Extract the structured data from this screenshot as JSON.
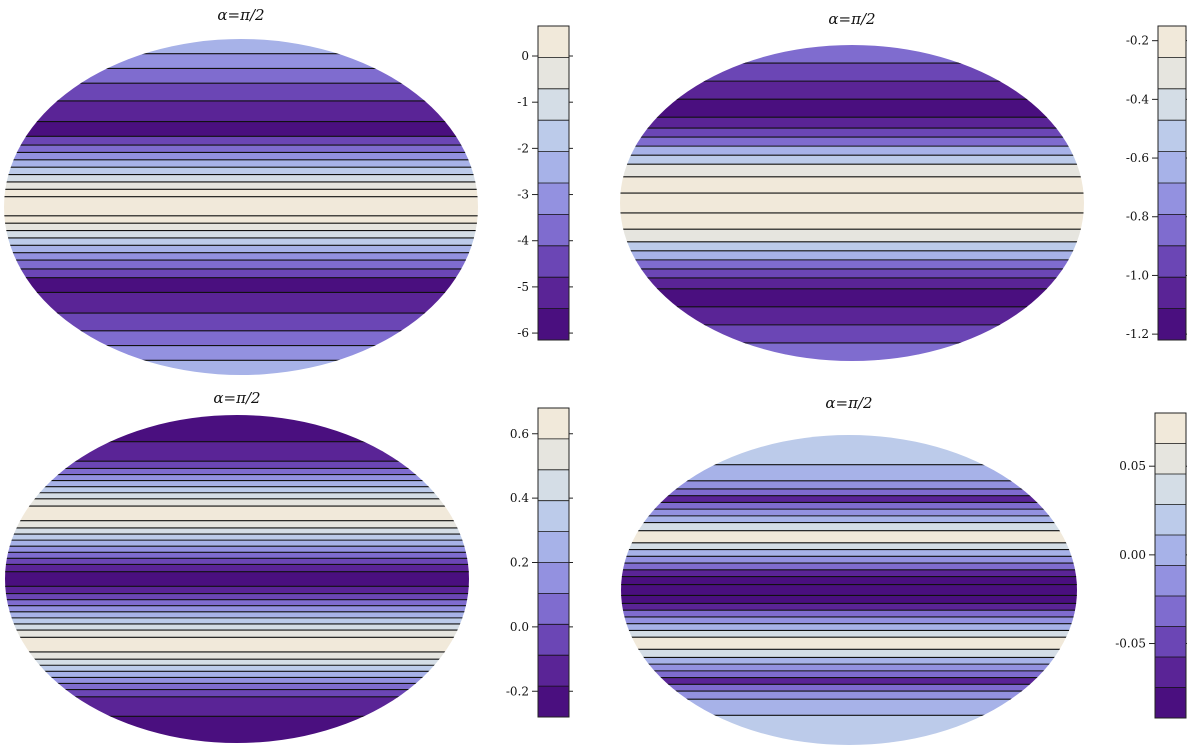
{
  "chart_data": [
    {
      "type": "heatmap",
      "title": "α=π/2",
      "colorbar": {
        "range": [
          -6.15,
          0.65
        ],
        "ticks": [
          "0",
          "-1",
          "-2",
          "-3",
          "-4",
          "-5",
          "-6"
        ],
        "tick_values": [
          0,
          -1,
          -2,
          -3,
          -4,
          -5,
          -6
        ],
        "levels": 10
      },
      "bands": [
        {
          "v": -2.6,
          "h": 1.0
        },
        {
          "v": -3.2,
          "h": 1.0
        },
        {
          "v": -3.9,
          "h": 1.0
        },
        {
          "v": -4.6,
          "h": 1.2
        },
        {
          "v": -5.2,
          "h": 1.4
        },
        {
          "v": -5.9,
          "h": 1.0
        },
        {
          "v": -4.6,
          "h": 0.6
        },
        {
          "v": -3.9,
          "h": 0.5
        },
        {
          "v": -3.2,
          "h": 0.5
        },
        {
          "v": -2.6,
          "h": 0.5
        },
        {
          "v": -1.9,
          "h": 0.5
        },
        {
          "v": -1.3,
          "h": 0.5
        },
        {
          "v": -0.6,
          "h": 0.5
        },
        {
          "v": 0.0,
          "h": 0.5
        },
        {
          "v": 0.4,
          "h": 1.3
        },
        {
          "v": 0.0,
          "h": 0.5
        },
        {
          "v": -0.6,
          "h": 0.5
        },
        {
          "v": -1.3,
          "h": 0.5
        },
        {
          "v": -1.9,
          "h": 0.5
        },
        {
          "v": -2.6,
          "h": 0.5
        },
        {
          "v": -3.2,
          "h": 0.5
        },
        {
          "v": -3.9,
          "h": 0.6
        },
        {
          "v": -4.6,
          "h": 0.6
        },
        {
          "v": -5.9,
          "h": 1.0
        },
        {
          "v": -5.2,
          "h": 1.4
        },
        {
          "v": -4.6,
          "h": 1.2
        },
        {
          "v": -3.9,
          "h": 1.0
        },
        {
          "v": -3.2,
          "h": 1.0
        },
        {
          "v": -2.6,
          "h": 1.0
        }
      ]
    },
    {
      "type": "heatmap",
      "title": "α=π/2",
      "colorbar": {
        "range": [
          -1.22,
          -0.15
        ],
        "ticks": [
          "-0.2",
          "-0.4",
          "-0.6",
          "-0.8",
          "-1.0",
          "-1.2"
        ],
        "tick_values": [
          -0.2,
          -0.4,
          -0.6,
          -0.8,
          -1.0,
          -1.2
        ],
        "levels": 10
      },
      "bands": [
        {
          "v": -0.8,
          "h": 1.0
        },
        {
          "v": -0.9,
          "h": 1.0
        },
        {
          "v": -1.1,
          "h": 1.0
        },
        {
          "v": -1.2,
          "h": 1.0
        },
        {
          "v": -1.1,
          "h": 0.6
        },
        {
          "v": -0.9,
          "h": 0.5
        },
        {
          "v": -0.8,
          "h": 0.5
        },
        {
          "v": -0.65,
          "h": 0.5
        },
        {
          "v": -0.5,
          "h": 0.5
        },
        {
          "v": -0.35,
          "h": 0.7
        },
        {
          "v": -0.25,
          "h": 0.9
        },
        {
          "v": -0.18,
          "h": 1.1
        },
        {
          "v": -0.25,
          "h": 0.9
        },
        {
          "v": -0.35,
          "h": 0.7
        },
        {
          "v": -0.5,
          "h": 0.5
        },
        {
          "v": -0.65,
          "h": 0.5
        },
        {
          "v": -0.8,
          "h": 0.5
        },
        {
          "v": -0.9,
          "h": 0.5
        },
        {
          "v": -1.1,
          "h": 0.6
        },
        {
          "v": -1.2,
          "h": 1.0
        },
        {
          "v": -1.1,
          "h": 1.0
        },
        {
          "v": -0.9,
          "h": 1.0
        },
        {
          "v": -0.8,
          "h": 1.0
        }
      ]
    },
    {
      "type": "heatmap",
      "title": "α=π/2",
      "colorbar": {
        "range": [
          -0.28,
          0.68
        ],
        "ticks": [
          "0.6",
          "0.4",
          "0.2",
          "0.0",
          "-0.2"
        ],
        "tick_values": [
          0.6,
          0.4,
          0.2,
          0.0,
          -0.2
        ],
        "levels": 10
      },
      "bands": [
        {
          "v": -0.25,
          "h": 2.2
        },
        {
          "v": -0.15,
          "h": 1.6
        },
        {
          "v": -0.05,
          "h": 0.6
        },
        {
          "v": 0.05,
          "h": 0.5
        },
        {
          "v": 0.15,
          "h": 0.5
        },
        {
          "v": 0.25,
          "h": 0.5
        },
        {
          "v": 0.35,
          "h": 0.5
        },
        {
          "v": 0.45,
          "h": 0.5
        },
        {
          "v": 0.55,
          "h": 0.6
        },
        {
          "v": 0.64,
          "h": 1.2
        },
        {
          "v": 0.55,
          "h": 0.6
        },
        {
          "v": 0.45,
          "h": 0.5
        },
        {
          "v": 0.35,
          "h": 0.5
        },
        {
          "v": 0.25,
          "h": 0.5
        },
        {
          "v": 0.15,
          "h": 0.5
        },
        {
          "v": 0.05,
          "h": 0.5
        },
        {
          "v": -0.05,
          "h": 0.5
        },
        {
          "v": -0.15,
          "h": 0.6
        },
        {
          "v": -0.25,
          "h": 1.2
        },
        {
          "v": -0.15,
          "h": 0.6
        },
        {
          "v": -0.05,
          "h": 0.5
        },
        {
          "v": 0.05,
          "h": 0.5
        },
        {
          "v": 0.15,
          "h": 0.5
        },
        {
          "v": 0.25,
          "h": 0.5
        },
        {
          "v": 0.35,
          "h": 0.5
        },
        {
          "v": 0.45,
          "h": 0.5
        },
        {
          "v": 0.55,
          "h": 0.6
        },
        {
          "v": 0.64,
          "h": 1.2
        },
        {
          "v": 0.55,
          "h": 0.6
        },
        {
          "v": 0.45,
          "h": 0.5
        },
        {
          "v": 0.35,
          "h": 0.5
        },
        {
          "v": 0.25,
          "h": 0.5
        },
        {
          "v": 0.15,
          "h": 0.5
        },
        {
          "v": 0.05,
          "h": 0.5
        },
        {
          "v": -0.05,
          "h": 0.6
        },
        {
          "v": -0.15,
          "h": 1.6
        },
        {
          "v": -0.25,
          "h": 2.2
        }
      ]
    },
    {
      "type": "heatmap",
      "title": "α=π/2",
      "colorbar": {
        "range": [
          -0.092,
          0.08
        ],
        "ticks": [
          "0.05",
          "0.00",
          "-0.05"
        ],
        "tick_values": [
          0.05,
          0.0,
          -0.05
        ],
        "levels": 10
      },
      "bands": [
        {
          "v": 0.02,
          "h": 2.2
        },
        {
          "v": 0.0,
          "h": 1.2
        },
        {
          "v": -0.02,
          "h": 0.6
        },
        {
          "v": -0.04,
          "h": 0.5
        },
        {
          "v": -0.06,
          "h": 0.5
        },
        {
          "v": -0.04,
          "h": 0.5
        },
        {
          "v": -0.02,
          "h": 0.5
        },
        {
          "v": 0.0,
          "h": 0.5
        },
        {
          "v": 0.04,
          "h": 0.6
        },
        {
          "v": 0.07,
          "h": 0.9
        },
        {
          "v": 0.04,
          "h": 0.5
        },
        {
          "v": 0.0,
          "h": 0.5
        },
        {
          "v": -0.02,
          "h": 0.5
        },
        {
          "v": -0.04,
          "h": 0.5
        },
        {
          "v": -0.06,
          "h": 0.5
        },
        {
          "v": -0.08,
          "h": 0.6
        },
        {
          "v": -0.09,
          "h": 0.8
        },
        {
          "v": -0.08,
          "h": 0.6
        },
        {
          "v": -0.06,
          "h": 0.5
        },
        {
          "v": -0.04,
          "h": 0.5
        },
        {
          "v": -0.02,
          "h": 0.5
        },
        {
          "v": 0.0,
          "h": 0.5
        },
        {
          "v": 0.04,
          "h": 0.5
        },
        {
          "v": 0.07,
          "h": 0.9
        },
        {
          "v": 0.04,
          "h": 0.6
        },
        {
          "v": 0.0,
          "h": 0.5
        },
        {
          "v": -0.02,
          "h": 0.5
        },
        {
          "v": -0.04,
          "h": 0.5
        },
        {
          "v": -0.06,
          "h": 0.5
        },
        {
          "v": -0.04,
          "h": 0.5
        },
        {
          "v": -0.02,
          "h": 0.6
        },
        {
          "v": 0.0,
          "h": 1.2
        },
        {
          "v": 0.02,
          "h": 2.2
        }
      ]
    }
  ]
}
